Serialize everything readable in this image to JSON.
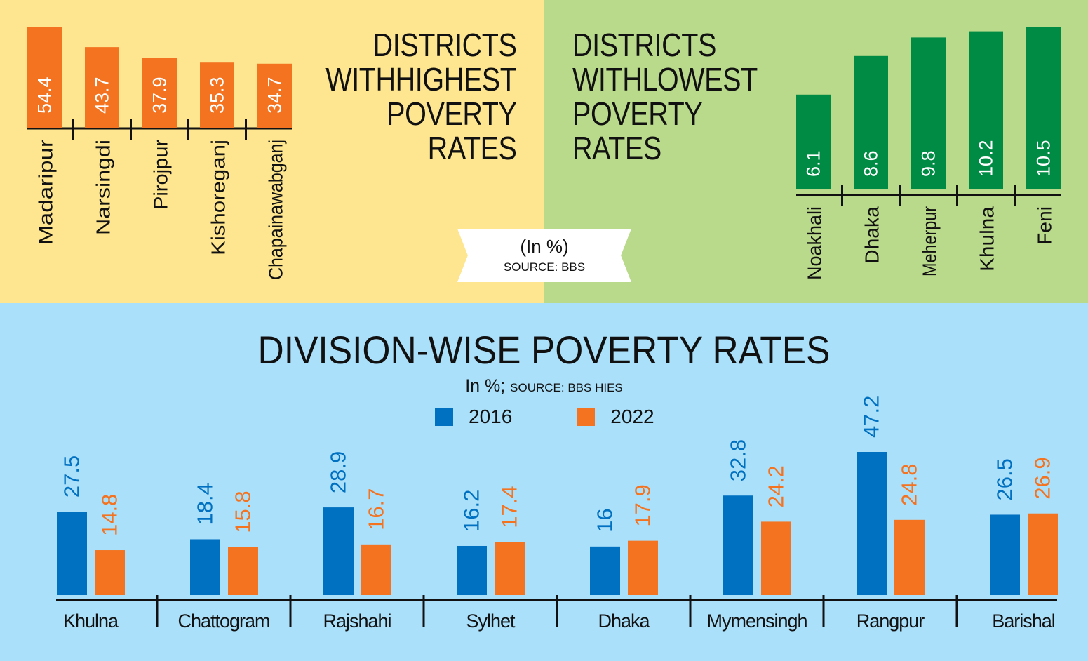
{
  "colors": {
    "high_panel_bg": "#fde68f",
    "low_panel_bg": "#b9d98b",
    "division_panel_bg": "#abe0fa",
    "orange": "#f37321",
    "green": "#008b45",
    "blue": "#0070c0",
    "axis": "#111111"
  },
  "highest": {
    "title_lines": [
      "DISTRICTS",
      "WITHHIGHEST",
      "POVERTY",
      "RATES"
    ]
  },
  "lowest": {
    "title_lines": [
      "DISTRICTS",
      "WITHLOWEST",
      "POVERTY",
      "RATES"
    ]
  },
  "ribbon": {
    "unit": "(In %)",
    "source": "SOURCE: BBS"
  },
  "division": {
    "title": "DIVISION-WISE POVERTY RATES",
    "unit": "In %;",
    "source": "SOURCE: BBS HIES"
  },
  "chart_data": [
    {
      "type": "bar",
      "title": "DISTRICTS WITHHIGHEST POVERTY RATES",
      "categories": [
        "Madaripur",
        "Narsingdi",
        "Pirojpur",
        "Kishoreganj",
        "Chapainawabganj"
      ],
      "values": [
        54.4,
        43.7,
        37.9,
        35.3,
        34.7
      ],
      "unit": "%",
      "color": "#f37321"
    },
    {
      "type": "bar",
      "title": "DISTRICTS WITHLOWEST POVERTY RATES",
      "categories": [
        "Noakhali",
        "Dhaka",
        "Meherpur",
        "Khulna",
        "Feni"
      ],
      "values": [
        6.1,
        8.6,
        9.8,
        10.2,
        10.5
      ],
      "unit": "%",
      "color": "#008b45"
    },
    {
      "type": "bar",
      "title": "DIVISION-WISE POVERTY RATES",
      "subtitle": "In %; SOURCE: BBS HIES",
      "legend_position": "top-center",
      "categories": [
        "Khulna",
        "Chattogram",
        "Rajshahi",
        "Sylhet",
        "Dhaka",
        "Mymensingh",
        "Rangpur",
        "Barishal"
      ],
      "series": [
        {
          "name": "2016",
          "color": "#0070c0",
          "values": [
            27.5,
            18.4,
            28.9,
            16.2,
            16,
            32.8,
            47.2,
            26.5
          ]
        },
        {
          "name": "2022",
          "color": "#f37321",
          "values": [
            14.8,
            15.8,
            16.7,
            17.4,
            17.9,
            24.2,
            24.8,
            26.9
          ]
        }
      ]
    }
  ]
}
